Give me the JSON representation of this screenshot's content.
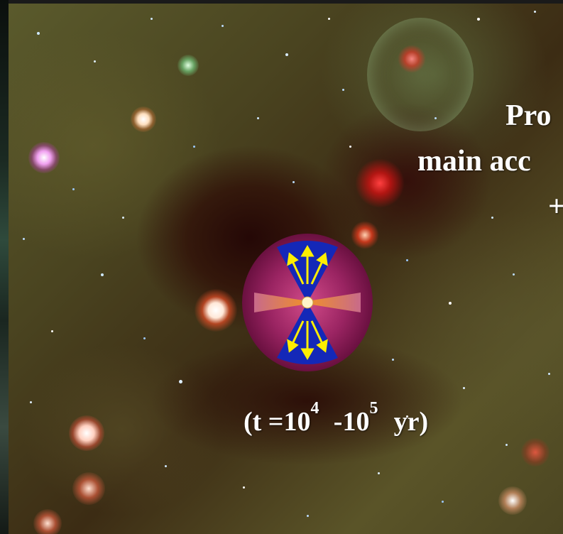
{
  "caption": {
    "prefix": "(t =10",
    "exp1": "4",
    "middle": "-10",
    "exp2": "5",
    "suffix": " yr)"
  },
  "side_text": {
    "line1": "Pro",
    "line2": "main acc",
    "line3": "+"
  },
  "colors": {
    "envelope": "#7a1a4e",
    "outflow_cone": "#1428b8",
    "arrows": "#ffee00",
    "disk": "#e8822a",
    "protostar": "#fff4c8"
  }
}
